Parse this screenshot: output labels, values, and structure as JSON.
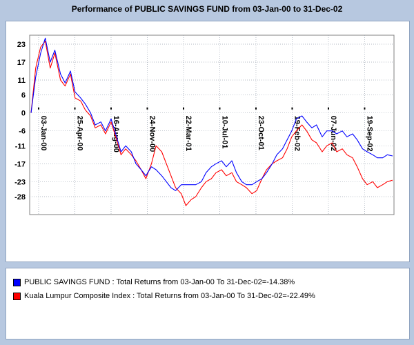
{
  "title": "Performance of PUBLIC SAVINGS FUND from 03-Jan-00 to 31-Dec-02",
  "colors": {
    "background": "#b7c8e0",
    "fund_series": "#0000ff",
    "index_series": "#ff0000",
    "grid": "#9aa4b0"
  },
  "legend": [
    {
      "label": "PUBLIC SAVINGS FUND : Total Returns from 03-Jan-00 To 31-Dec-02=-14.38%",
      "color": "#0000ff"
    },
    {
      "label": "Kuala Lumpur Composite Index : Total Returns from 03-Jan-00 To 31-Dec-02=-22.49%",
      "color": "#ff0000"
    }
  ],
  "chart_data": {
    "type": "line",
    "title": "Performance of PUBLIC SAVINGS FUND from 03-Jan-00 to 31-Dec-02",
    "xlabel": "",
    "ylabel": "",
    "ylim": [
      -34,
      26
    ],
    "grid": true,
    "y_ticks": [
      23,
      17,
      11,
      6,
      0,
      -6,
      -11,
      -17,
      -23,
      -28
    ],
    "x_ticks": [
      "03-Jan-00",
      "25-Apr-00",
      "16-Aug-00",
      "24-Nov-00",
      "22-Mar-01",
      "10-Jul-01",
      "23-Oct-01",
      "19-Feb-02",
      "07-Jun-02",
      "19-Sep-02"
    ],
    "x": [
      "2000-01-03",
      "2000-01-17",
      "2000-02-01",
      "2000-02-15",
      "2000-03-01",
      "2000-03-15",
      "2000-04-01",
      "2000-04-15",
      "2000-05-01",
      "2000-05-15",
      "2000-06-01",
      "2000-06-15",
      "2000-07-01",
      "2000-07-15",
      "2000-08-01",
      "2000-08-15",
      "2000-09-01",
      "2000-09-15",
      "2000-10-01",
      "2000-10-15",
      "2000-11-01",
      "2000-11-15",
      "2000-12-01",
      "2000-12-15",
      "2001-01-01",
      "2001-01-15",
      "2001-02-01",
      "2001-02-15",
      "2001-03-01",
      "2001-03-15",
      "2001-04-01",
      "2001-04-15",
      "2001-05-01",
      "2001-05-15",
      "2001-06-01",
      "2001-06-15",
      "2001-07-01",
      "2001-07-15",
      "2001-08-01",
      "2001-08-15",
      "2001-09-01",
      "2001-09-15",
      "2001-10-01",
      "2001-10-15",
      "2001-11-01",
      "2001-11-15",
      "2001-12-01",
      "2001-12-15",
      "2002-01-01",
      "2002-01-15",
      "2002-02-01",
      "2002-02-15",
      "2002-03-01",
      "2002-03-15",
      "2002-04-01",
      "2002-04-15",
      "2002-05-01",
      "2002-05-15",
      "2002-06-01",
      "2002-06-15",
      "2002-07-01",
      "2002-07-15",
      "2002-08-01",
      "2002-08-15",
      "2002-09-01",
      "2002-09-15",
      "2002-10-01",
      "2002-10-15",
      "2002-11-01",
      "2002-11-15",
      "2002-12-01",
      "2002-12-15",
      "2002-12-31"
    ],
    "series": [
      {
        "name": "PUBLIC SAVINGS FUND",
        "color": "#0000ff",
        "values": [
          0,
          12,
          20,
          25,
          17,
          21,
          13,
          10,
          14,
          7,
          5,
          3,
          0,
          -4,
          -3,
          -6,
          -2,
          -7,
          -13,
          -11,
          -13,
          -17,
          -19,
          -21,
          -18,
          -19,
          -21,
          -23,
          -25,
          -26,
          -24,
          -24,
          -24,
          -24,
          -23,
          -20,
          -18,
          -17,
          -16,
          -18,
          -16,
          -20,
          -23,
          -24,
          -24,
          -23,
          -22,
          -20,
          -17,
          -14,
          -12,
          -9,
          -6,
          -2,
          -1,
          -3,
          -5,
          -4,
          -8,
          -6,
          -6,
          -7,
          -6,
          -8,
          -7,
          -9,
          -12,
          -13,
          -14,
          -15,
          -15,
          -14,
          -14.38
        ]
      },
      {
        "name": "Kuala Lumpur Composite Index",
        "color": "#ff0000",
        "values": [
          0,
          15,
          22,
          24,
          15,
          20,
          11,
          9,
          13,
          5,
          4,
          1,
          -1,
          -5,
          -4,
          -7,
          -3,
          -8,
          -14,
          -12,
          -14,
          -16,
          -19,
          -22,
          -17,
          -11,
          -13,
          -17,
          -21,
          -25,
          -27,
          -31,
          -29,
          -28,
          -25,
          -23,
          -22,
          -20,
          -19,
          -21,
          -20,
          -23,
          -24,
          -25,
          -27,
          -26,
          -22,
          -19,
          -17,
          -16,
          -15,
          -12,
          -8,
          -6,
          -4,
          -6,
          -9,
          -10,
          -13,
          -11,
          -10,
          -13,
          -12,
          -14,
          -15,
          -18,
          -22,
          -24,
          -23,
          -25,
          -24,
          -23,
          -22.49
        ]
      }
    ]
  }
}
